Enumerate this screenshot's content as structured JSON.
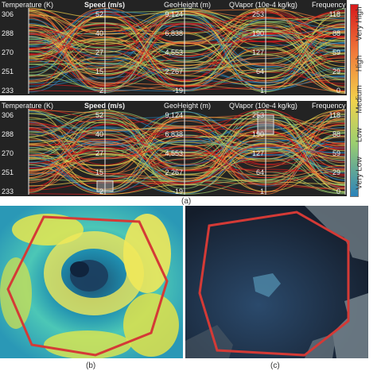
{
  "figure": {
    "caption_a": "(a)",
    "caption_b": "(b)",
    "caption_c": "(c)"
  },
  "colorbar": {
    "labels": [
      "Very High",
      "High",
      "Medium",
      "Low",
      "Very Low"
    ],
    "colors": [
      "#d7191c",
      "#f07a3a",
      "#f2d24b",
      "#9ccf6f",
      "#2b83ba"
    ]
  },
  "chart_data": [
    {
      "type": "parallel-coordinates",
      "panel": "top",
      "axes": [
        {
          "name": "Temperature (K)",
          "ticks": [
            "306",
            "288",
            "270",
            "251",
            "233"
          ],
          "range": [
            233,
            306
          ]
        },
        {
          "name": "Speed (m/s)",
          "ticks": [
            "52",
            "40",
            "27",
            "15",
            "2"
          ],
          "range": [
            2,
            52
          ]
        },
        {
          "name": "GeoHeight (m)",
          "ticks": [
            "9,124",
            "6,838",
            "4,553",
            "2,267",
            "-19"
          ],
          "range": [
            -19,
            9124
          ]
        },
        {
          "name": "QVapor (10e-4 kg/kg)",
          "ticks": [
            "253",
            "190",
            "127",
            "64",
            "1"
          ],
          "range": [
            1,
            253
          ]
        },
        {
          "name": "Frequency",
          "ticks": [
            "118",
            "88",
            "59",
            "29",
            "0"
          ],
          "range": [
            0,
            118
          ]
        }
      ],
      "brushes": []
    },
    {
      "type": "parallel-coordinates",
      "panel": "bottom",
      "axes": [
        {
          "name": "Temperature (K)",
          "ticks": [
            "306",
            "288",
            "270",
            "251",
            "233"
          ],
          "range": [
            233,
            306
          ]
        },
        {
          "name": "Speed (m/s)",
          "ticks": [
            "52",
            "40",
            "27",
            "15",
            "2"
          ],
          "range": [
            2,
            52
          ]
        },
        {
          "name": "GeoHeight (m)",
          "ticks": [
            "9,124",
            "6,838",
            "4,553",
            "2,267",
            "-19"
          ],
          "range": [
            -19,
            9124
          ]
        },
        {
          "name": "QVapor (10e-4 kg/kg)",
          "ticks": [
            "253",
            "190",
            "127",
            "64",
            "1"
          ],
          "range": [
            1,
            253
          ]
        },
        {
          "name": "Frequency",
          "ticks": [
            "118",
            "88",
            "59",
            "29",
            "0"
          ],
          "range": [
            0,
            118
          ]
        }
      ],
      "brushes": [
        {
          "axis": "Speed (m/s)",
          "range": [
            2,
            9
          ]
        },
        {
          "axis": "QVapor (10e-4 kg/kg)",
          "range": [
            190,
            253
          ]
        }
      ]
    }
  ]
}
